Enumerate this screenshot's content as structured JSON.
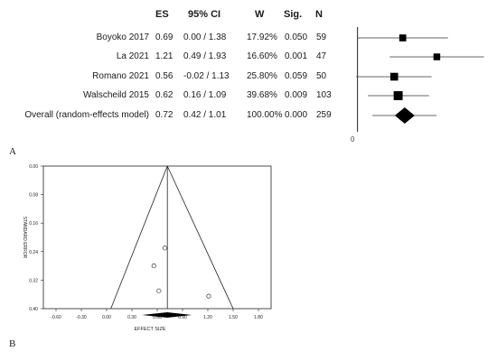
{
  "panel_a": {
    "label": "A",
    "headers": {
      "es": "ES",
      "ci": "95% CI",
      "w": "W",
      "sig": "Sig.",
      "n": "N"
    },
    "axis_zero_label": "0"
  },
  "panel_b": {
    "label": "B"
  },
  "chart_data": [
    {
      "type": "forest",
      "rows": [
        {
          "name": "Boyoko 2017",
          "es": "0.69",
          "ci": "0.00 / 1.38",
          "w": "17.92%",
          "sig": "0.050",
          "n": "59",
          "es_value": 0.69,
          "ci_low": 0.0,
          "ci_high": 1.38,
          "weight_pct": 17.92
        },
        {
          "name": "La 2021",
          "es": "1.21",
          "ci": "0.49 / 1.93",
          "w": "16.60%",
          "sig": "0.001",
          "n": "47",
          "es_value": 1.21,
          "ci_low": 0.49,
          "ci_high": 1.93,
          "weight_pct": 16.6
        },
        {
          "name": "Romano 2021",
          "es": "0.56",
          "ci": "-0.02 / 1.13",
          "w": "25.80%",
          "sig": "0.059",
          "n": "50",
          "es_value": 0.56,
          "ci_low": -0.02,
          "ci_high": 1.13,
          "weight_pct": 25.8
        },
        {
          "name": "Walscheild 2015",
          "es": "0.62",
          "ci": "0.16 / 1.09",
          "w": "39.68%",
          "sig": "0.009",
          "n": "103",
          "es_value": 0.62,
          "ci_low": 0.16,
          "ci_high": 1.09,
          "weight_pct": 39.68
        }
      ],
      "overall": {
        "name": "Overall (random-effects model)",
        "es": "0.72",
        "ci": "0.42 / 1.01",
        "w": "100.00%",
        "sig": "0.000",
        "n": "259",
        "es_value": 0.72,
        "ci_low": 0.42,
        "ci_high": 1.01
      },
      "xlim": [
        -0.05,
        2.1
      ]
    },
    {
      "type": "scatter",
      "subtype": "funnel",
      "xlabel": "EFFECT SIZE",
      "ylabel": "STANDARD ERROR",
      "x_ticks": [
        "-0.60",
        "-0.30",
        "0.00",
        "0.30",
        "0.60",
        "0.90",
        "1.20",
        "1.50",
        "1.80"
      ],
      "x_tick_values": [
        -0.6,
        -0.3,
        0.0,
        0.3,
        0.6,
        0.9,
        1.2,
        1.5,
        1.8
      ],
      "y_ticks": [
        "0.00",
        "0.08",
        "0.16",
        "0.24",
        "0.32",
        "0.40"
      ],
      "y_tick_values": [
        0.0,
        0.08,
        0.16,
        0.24,
        0.32,
        0.4
      ],
      "xlim": [
        -0.75,
        1.95
      ],
      "ylim": [
        0,
        0.4
      ],
      "center": 0.72,
      "funnel_apex": [
        0.72,
        0.0
      ],
      "funnel_base": [
        0.05,
        1.5,
        0.4
      ],
      "points": [
        {
          "x": 0.69,
          "y": 0.23
        },
        {
          "x": 0.56,
          "y": 0.28
        },
        {
          "x": 0.62,
          "y": 0.35
        },
        {
          "x": 1.21,
          "y": 0.365
        }
      ],
      "summary_diamond": {
        "center": 0.72,
        "low": 0.42,
        "high": 1.01
      }
    }
  ]
}
